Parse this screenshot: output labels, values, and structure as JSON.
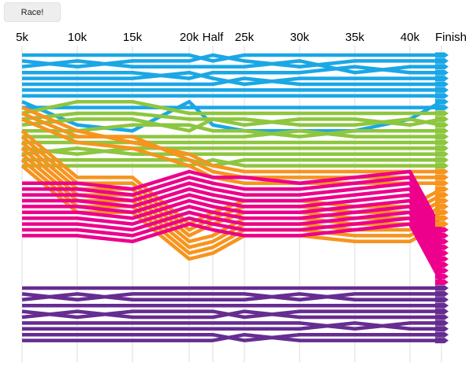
{
  "controls": {
    "race_button_label": "Race!"
  },
  "colors": {
    "blue": "#1aa7e6",
    "green": "#8dc63f",
    "orange": "#f7941d",
    "magenta": "#ec008c",
    "purple": "#662d91",
    "grid": "#dddddd"
  },
  "chart_data": {
    "type": "line",
    "title": "",
    "xlabel": "",
    "ylabel": "",
    "x": [
      "5k",
      "10k",
      "15k",
      "20k",
      "Half",
      "25k",
      "30k",
      "35k",
      "40k",
      "Finish"
    ],
    "y_meaning": "rank position (1 = top)",
    "ylim": [
      1,
      50
    ],
    "grid": "vertical lines at each split",
    "series": [
      {
        "color_group": "blue",
        "ranks": [
          1,
          1,
          1,
          1,
          2,
          1,
          1,
          1,
          1,
          1
        ]
      },
      {
        "color_group": "blue",
        "ranks": [
          2,
          3,
          2,
          2,
          1,
          2,
          3,
          2,
          2,
          2
        ]
      },
      {
        "color_group": "blue",
        "ranks": [
          3,
          2,
          3,
          3,
          3,
          3,
          2,
          4,
          3,
          3
        ]
      },
      {
        "color_group": "blue",
        "ranks": [
          4,
          4,
          4,
          5,
          4,
          4,
          4,
          3,
          4,
          4
        ]
      },
      {
        "color_group": "blue",
        "ranks": [
          5,
          5,
          5,
          4,
          5,
          6,
          5,
          5,
          5,
          5
        ]
      },
      {
        "color_group": "blue",
        "ranks": [
          6,
          6,
          6,
          6,
          6,
          5,
          6,
          6,
          6,
          6
        ]
      },
      {
        "color_group": "blue",
        "ranks": [
          7,
          7,
          7,
          7,
          7,
          7,
          7,
          7,
          7,
          7
        ]
      },
      {
        "color_group": "blue",
        "ranks": [
          8,
          8,
          8,
          8,
          8,
          8,
          8,
          8,
          8,
          8
        ]
      },
      {
        "color_group": "blue",
        "ranks": [
          9,
          13,
          14,
          9,
          13,
          14,
          14,
          14,
          12,
          9
        ]
      },
      {
        "color_group": "blue",
        "ranks": [
          10,
          10,
          10,
          10,
          10,
          10,
          10,
          10,
          10,
          10
        ]
      },
      {
        "color_group": "green",
        "ranks": [
          11,
          9,
          9,
          11,
          11,
          11,
          11,
          11,
          11,
          11
        ]
      },
      {
        "color_group": "green",
        "ranks": [
          12,
          11,
          11,
          12,
          12,
          13,
          12,
          12,
          13,
          12
        ]
      },
      {
        "color_group": "green",
        "ranks": [
          13,
          12,
          12,
          14,
          12,
          12,
          13,
          13,
          12,
          13
        ]
      },
      {
        "color_group": "green",
        "ranks": [
          14,
          14,
          13,
          13,
          14,
          14,
          15,
          14,
          14,
          14
        ]
      },
      {
        "color_group": "green",
        "ranks": [
          15,
          15,
          15,
          15,
          15,
          15,
          14,
          15,
          15,
          15
        ]
      },
      {
        "color_group": "green",
        "ranks": [
          16,
          16,
          16,
          16,
          16,
          16,
          16,
          16,
          16,
          16
        ]
      },
      {
        "color_group": "green",
        "ranks": [
          17,
          18,
          17,
          17,
          17,
          17,
          17,
          17,
          17,
          17
        ]
      },
      {
        "color_group": "green",
        "ranks": [
          18,
          17,
          18,
          18,
          18,
          18,
          18,
          18,
          18,
          18
        ]
      },
      {
        "color_group": "green",
        "ranks": [
          19,
          19,
          19,
          19,
          20,
          19,
          19,
          19,
          19,
          19
        ]
      },
      {
        "color_group": "green",
        "ranks": [
          20,
          20,
          20,
          20,
          19,
          20,
          20,
          20,
          20,
          20
        ]
      },
      {
        "color_group": "orange",
        "ranks": [
          10,
          14,
          16,
          18,
          20,
          21,
          21,
          21,
          21,
          21
        ]
      },
      {
        "color_group": "orange",
        "ranks": [
          11,
          15,
          15,
          19,
          21,
          22,
          22,
          22,
          22,
          22
        ]
      },
      {
        "color_group": "orange",
        "ranks": [
          12,
          16,
          17,
          20,
          22,
          23,
          23,
          23,
          23,
          23
        ]
      },
      {
        "color_group": "orange",
        "ranks": [
          14,
          22,
          22,
          30,
          28,
          26,
          26,
          27,
          27,
          24
        ]
      },
      {
        "color_group": "orange",
        "ranks": [
          15,
          23,
          23,
          31,
          29,
          27,
          27,
          28,
          28,
          25
        ]
      },
      {
        "color_group": "orange",
        "ranks": [
          16,
          24,
          24,
          32,
          30,
          28,
          28,
          29,
          29,
          26
        ]
      },
      {
        "color_group": "orange",
        "ranks": [
          17,
          25,
          25,
          33,
          32,
          29,
          29,
          30,
          30,
          27
        ]
      },
      {
        "color_group": "orange",
        "ranks": [
          18,
          26,
          26,
          34,
          33,
          30,
          30,
          31,
          31,
          28
        ]
      },
      {
        "color_group": "orange",
        "ranks": [
          19,
          27,
          27,
          35,
          34,
          31,
          31,
          32,
          32,
          29
        ]
      },
      {
        "color_group": "orange",
        "ranks": [
          20,
          28,
          28,
          36,
          35,
          32,
          32,
          33,
          33,
          30
        ]
      },
      {
        "color_group": "magenta",
        "ranks": [
          23,
          23,
          24,
          21,
          22,
          22,
          23,
          22,
          21,
          31
        ]
      },
      {
        "color_group": "magenta",
        "ranks": [
          24,
          24,
          25,
          22,
          23,
          24,
          24,
          23,
          22,
          32
        ]
      },
      {
        "color_group": "magenta",
        "ranks": [
          25,
          25,
          26,
          23,
          24,
          25,
          25,
          24,
          23,
          33
        ]
      },
      {
        "color_group": "magenta",
        "ranks": [
          26,
          26,
          27,
          24,
          25,
          26,
          26,
          25,
          24,
          34
        ]
      },
      {
        "color_group": "magenta",
        "ranks": [
          27,
          27,
          28,
          25,
          26,
          27,
          27,
          26,
          25,
          35
        ]
      },
      {
        "color_group": "magenta",
        "ranks": [
          28,
          28,
          29,
          26,
          27,
          28,
          28,
          27,
          26,
          36
        ]
      },
      {
        "color_group": "magenta",
        "ranks": [
          29,
          29,
          30,
          27,
          28,
          29,
          29,
          28,
          27,
          37
        ]
      },
      {
        "color_group": "magenta",
        "ranks": [
          30,
          30,
          31,
          28,
          29,
          30,
          30,
          29,
          28,
          38
        ]
      },
      {
        "color_group": "magenta",
        "ranks": [
          31,
          31,
          32,
          29,
          30,
          31,
          31,
          30,
          29,
          39
        ]
      },
      {
        "color_group": "magenta",
        "ranks": [
          32,
          32,
          33,
          30,
          31,
          32,
          32,
          31,
          30,
          40
        ]
      },
      {
        "color_group": "purple",
        "ranks": [
          41,
          41,
          41,
          41,
          41,
          41,
          41,
          41,
          41,
          41
        ]
      },
      {
        "color_group": "purple",
        "ranks": [
          42,
          43,
          42,
          42,
          42,
          42,
          43,
          42,
          42,
          42
        ]
      },
      {
        "color_group": "purple",
        "ranks": [
          43,
          42,
          43,
          43,
          43,
          43,
          42,
          43,
          43,
          43
        ]
      },
      {
        "color_group": "purple",
        "ranks": [
          44,
          44,
          44,
          44,
          44,
          44,
          44,
          44,
          44,
          44
        ]
      },
      {
        "color_group": "purple",
        "ranks": [
          45,
          46,
          45,
          45,
          45,
          46,
          45,
          45,
          45,
          45
        ]
      },
      {
        "color_group": "purple",
        "ranks": [
          46,
          45,
          46,
          46,
          46,
          45,
          46,
          46,
          46,
          46
        ]
      },
      {
        "color_group": "purple",
        "ranks": [
          47,
          47,
          47,
          47,
          47,
          47,
          47,
          48,
          47,
          47
        ]
      },
      {
        "color_group": "purple",
        "ranks": [
          48,
          48,
          48,
          48,
          48,
          48,
          48,
          47,
          48,
          48
        ]
      },
      {
        "color_group": "purple",
        "ranks": [
          49,
          49,
          49,
          49,
          49,
          50,
          49,
          49,
          49,
          49
        ]
      },
      {
        "color_group": "purple",
        "ranks": [
          50,
          50,
          50,
          50,
          50,
          49,
          50,
          50,
          50,
          50
        ]
      }
    ]
  }
}
